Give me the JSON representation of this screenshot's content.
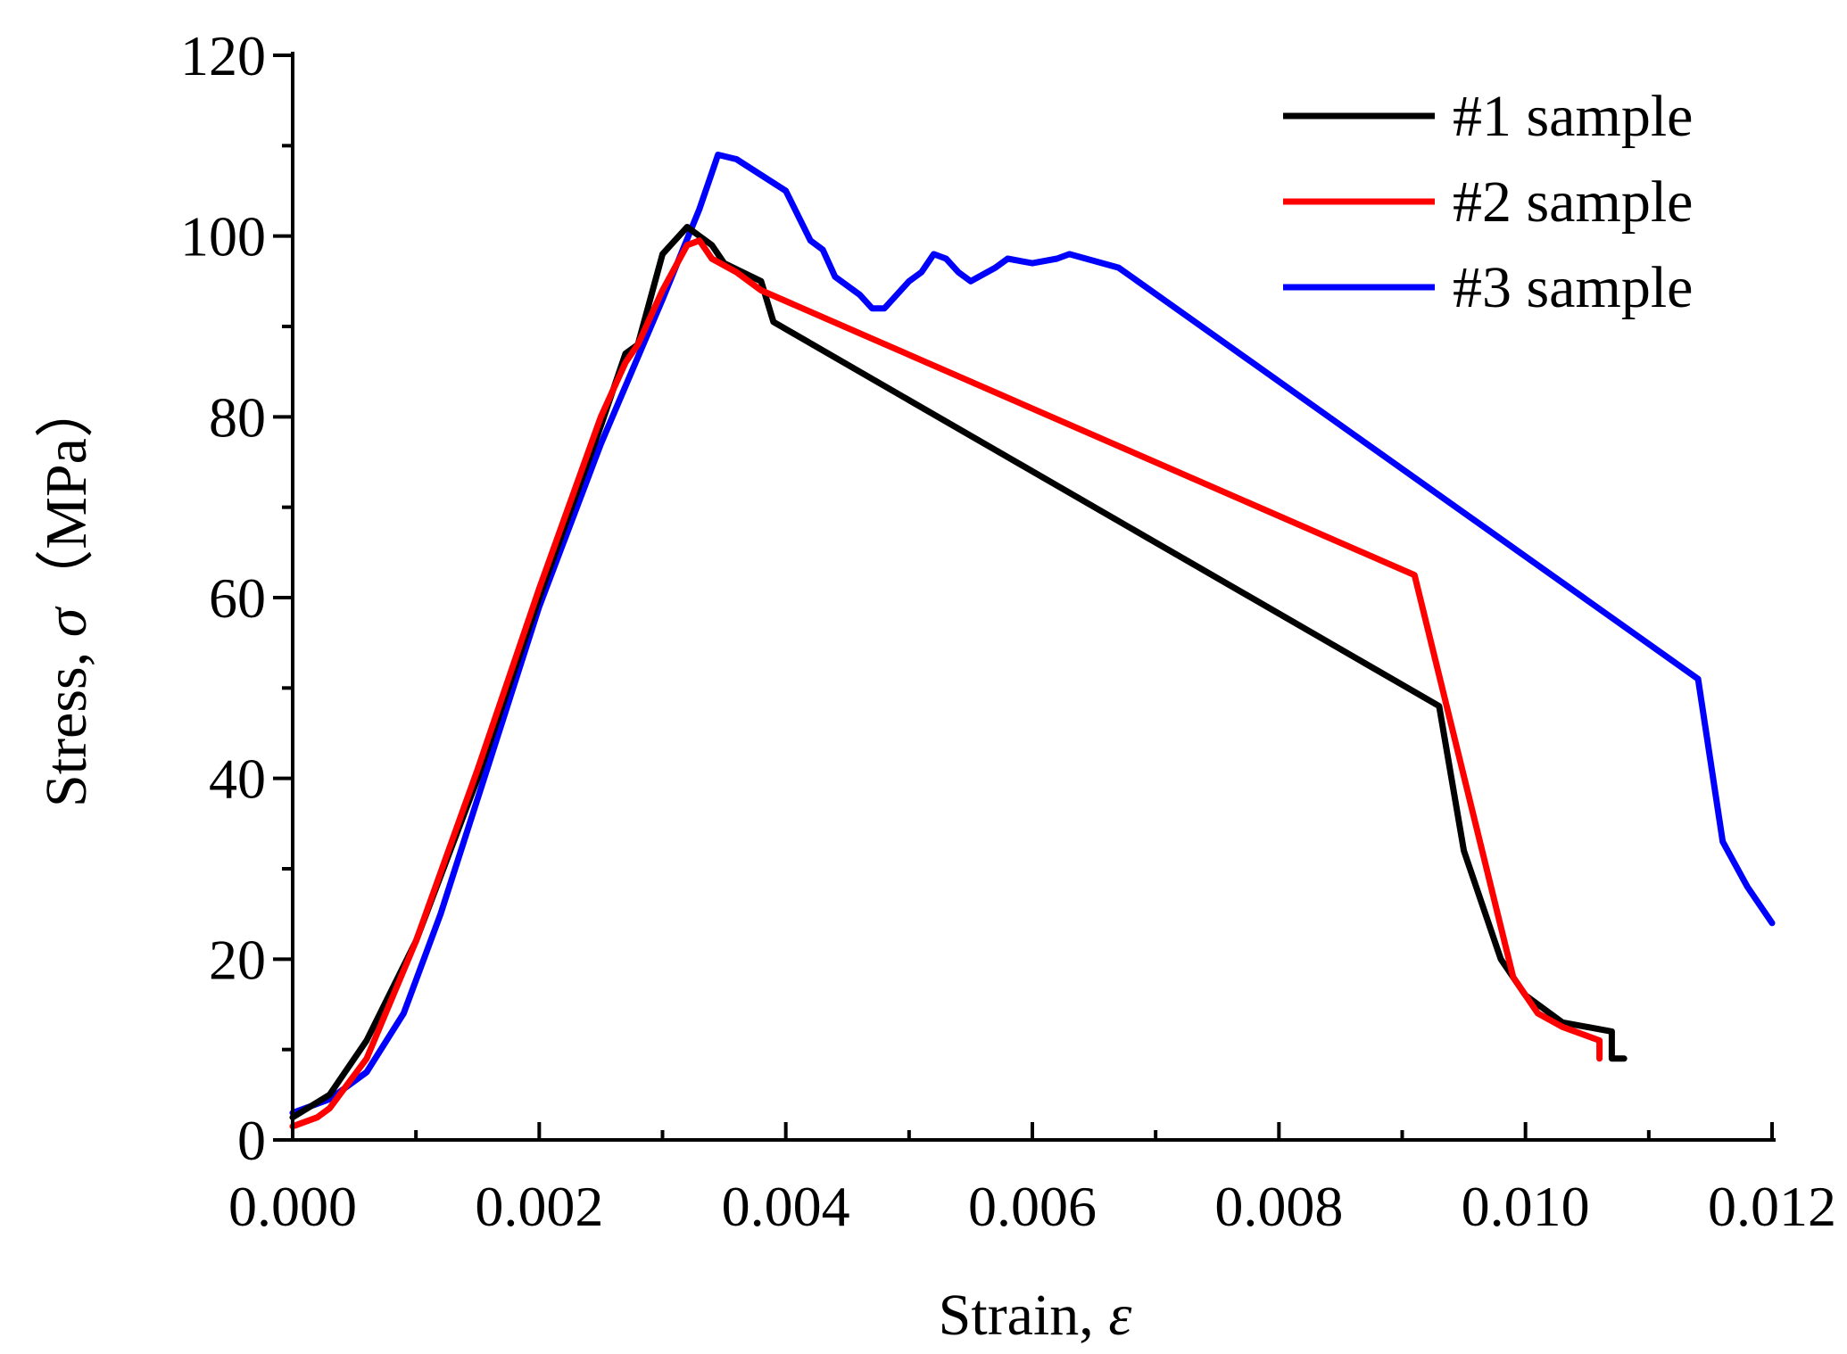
{
  "chart_data": {
    "type": "line",
    "title": "",
    "xlabel": "Strain, ",
    "xlabel_symbol": "ε",
    "ylabel": "Stress, ",
    "ylabel_symbol": "σ",
    "ylabel_unit": "（MPa）",
    "xlim": [
      0,
      0.012
    ],
    "ylim": [
      0,
      120
    ],
    "x_ticks": [
      0.0,
      0.002,
      0.004,
      0.006,
      0.008,
      0.01,
      0.012
    ],
    "x_tick_labels": [
      "0.000",
      "0.002",
      "0.004",
      "0.006",
      "0.008",
      "0.010",
      "0.012"
    ],
    "y_ticks": [
      0,
      20,
      40,
      60,
      80,
      100,
      120
    ],
    "y_tick_labels": [
      "0",
      "20",
      "40",
      "60",
      "80",
      "100",
      "120"
    ],
    "grid": false,
    "legend_position": "top-right",
    "series": [
      {
        "name": "#1 sample",
        "color": "#000000",
        "points": [
          [
            0.0,
            2.5
          ],
          [
            0.0003,
            5
          ],
          [
            0.0006,
            11
          ],
          [
            0.001,
            22
          ],
          [
            0.0015,
            40
          ],
          [
            0.002,
            60
          ],
          [
            0.0025,
            79
          ],
          [
            0.0027,
            87
          ],
          [
            0.0028,
            88
          ],
          [
            0.003,
            98
          ],
          [
            0.0032,
            101
          ],
          [
            0.0034,
            99
          ],
          [
            0.0035,
            97
          ],
          [
            0.0038,
            95
          ],
          [
            0.0039,
            90.5
          ],
          [
            0.0093,
            48
          ],
          [
            0.0095,
            32
          ],
          [
            0.0098,
            20
          ],
          [
            0.01,
            16
          ],
          [
            0.0103,
            13
          ],
          [
            0.0107,
            12
          ],
          [
            0.0107,
            9
          ],
          [
            0.0108,
            9
          ]
        ]
      },
      {
        "name": "#2 sample",
        "color": "#ff0000",
        "points": [
          [
            0.0,
            1.5
          ],
          [
            0.0002,
            2.5
          ],
          [
            0.0003,
            3.5
          ],
          [
            0.0006,
            9
          ],
          [
            0.001,
            22
          ],
          [
            0.0015,
            41
          ],
          [
            0.002,
            61
          ],
          [
            0.0025,
            80
          ],
          [
            0.0027,
            86
          ],
          [
            0.0028,
            88
          ],
          [
            0.003,
            94
          ],
          [
            0.0032,
            99
          ],
          [
            0.0033,
            99.5
          ],
          [
            0.0034,
            97.5
          ],
          [
            0.0036,
            96
          ],
          [
            0.0038,
            94
          ],
          [
            0.0091,
            62.5
          ],
          [
            0.0099,
            18
          ],
          [
            0.0101,
            14
          ],
          [
            0.0103,
            12.5
          ],
          [
            0.0106,
            11
          ],
          [
            0.0106,
            9
          ]
        ]
      },
      {
        "name": "#3 sample",
        "color": "#0000ff",
        "points": [
          [
            0.0,
            3
          ],
          [
            0.0003,
            4.5
          ],
          [
            0.0006,
            7.5
          ],
          [
            0.0009,
            14
          ],
          [
            0.0012,
            25
          ],
          [
            0.0016,
            42
          ],
          [
            0.002,
            59
          ],
          [
            0.0025,
            77
          ],
          [
            0.003,
            93
          ],
          [
            0.0033,
            103
          ],
          [
            0.0034,
            107
          ],
          [
            0.00345,
            109
          ],
          [
            0.0036,
            108.5
          ],
          [
            0.004,
            105
          ],
          [
            0.0042,
            99.5
          ],
          [
            0.0043,
            98.5
          ],
          [
            0.0044,
            95.5
          ],
          [
            0.0046,
            93.5
          ],
          [
            0.0047,
            92
          ],
          [
            0.0048,
            92
          ],
          [
            0.005,
            95
          ],
          [
            0.0051,
            96
          ],
          [
            0.0052,
            98
          ],
          [
            0.0053,
            97.5
          ],
          [
            0.0054,
            96
          ],
          [
            0.0055,
            95
          ],
          [
            0.0057,
            96.5
          ],
          [
            0.0058,
            97.5
          ],
          [
            0.006,
            97
          ],
          [
            0.0062,
            97.5
          ],
          [
            0.0063,
            98
          ],
          [
            0.0067,
            96.5
          ],
          [
            0.0114,
            51
          ],
          [
            0.0116,
            33
          ],
          [
            0.0118,
            28
          ],
          [
            0.012,
            24
          ]
        ]
      }
    ]
  }
}
